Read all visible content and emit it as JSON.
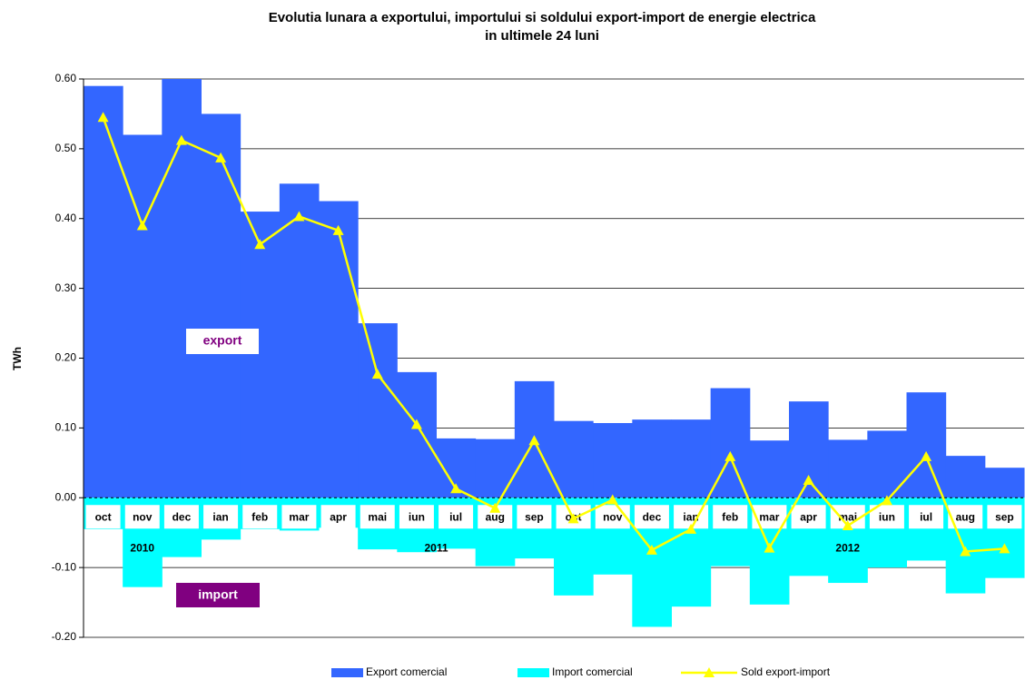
{
  "chart_data": {
    "type": "bar-line",
    "title": [
      "Evolutia lunara a exportului, importului si soldului export-import de energie electrica",
      "in ultimele 24 luni"
    ],
    "y_label": "TWh",
    "categories": [
      "oct",
      "nov",
      "dec",
      "ian",
      "feb",
      "mar",
      "apr",
      "mai",
      "iun",
      "iul",
      "aug",
      "sep",
      "oct",
      "nov",
      "dec",
      "ian",
      "feb",
      "mar",
      "apr",
      "mai",
      "iun",
      "iul",
      "aug",
      "sep"
    ],
    "groups": [
      {
        "name": "2010",
        "count": 3
      },
      {
        "name": "2011",
        "count": 12
      },
      {
        "name": "2012",
        "count": 9
      }
    ],
    "series": [
      {
        "name": "Export comercial",
        "kind": "bar",
        "color": "#3366ff",
        "values": [
          0.59,
          0.52,
          0.6,
          0.55,
          0.41,
          0.45,
          0.425,
          0.25,
          0.18,
          0.085,
          0.084,
          0.167,
          0.11,
          0.107,
          0.112,
          0.112,
          0.157,
          0.082,
          0.138,
          0.083,
          0.096,
          0.151,
          0.06,
          0.043
        ]
      },
      {
        "name": "Import comercial",
        "kind": "bar",
        "color": "#00ffff",
        "values": [
          -0.045,
          -0.128,
          -0.085,
          -0.06,
          -0.045,
          -0.047,
          -0.043,
          -0.074,
          -0.078,
          -0.073,
          -0.098,
          -0.087,
          -0.14,
          -0.11,
          -0.185,
          -0.156,
          -0.098,
          -0.153,
          -0.112,
          -0.122,
          -0.1,
          -0.09,
          -0.137,
          -0.115
        ]
      },
      {
        "name": "Sold export-import",
        "kind": "line",
        "color": "#ffff00",
        "values": [
          0.545,
          0.39,
          0.512,
          0.487,
          0.363,
          0.403,
          0.383,
          0.177,
          0.105,
          0.013,
          -0.015,
          0.082,
          -0.03,
          -0.003,
          -0.075,
          -0.045,
          0.059,
          -0.072,
          0.025,
          -0.04,
          -0.004,
          0.059,
          -0.077,
          -0.073
        ]
      }
    ],
    "annotations": [
      "export",
      "import"
    ],
    "ylim": [
      -0.2,
      0.6
    ],
    "yticks": [
      {
        "value": -0.2,
        "label": "-0.20"
      },
      {
        "value": -0.1,
        "label": "-0.10"
      },
      {
        "value": 0,
        "label": "0.00"
      },
      {
        "value": 0.1,
        "label": "0.10"
      },
      {
        "value": 0.2,
        "label": "0.20"
      },
      {
        "value": 0.3,
        "label": "0.30"
      },
      {
        "value": 0.4,
        "label": "0.40"
      },
      {
        "value": 0.5,
        "label": "0.50"
      },
      {
        "value": 0.6,
        "label": "0.60"
      }
    ],
    "grid": true
  }
}
